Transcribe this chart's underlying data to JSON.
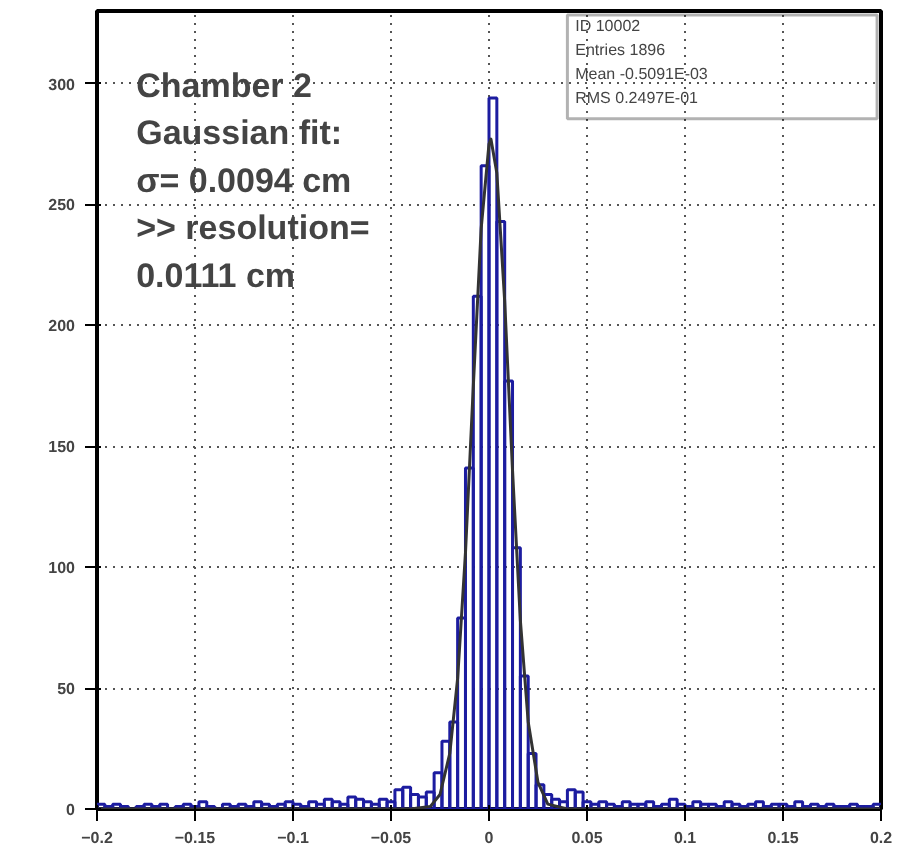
{
  "chart_data": {
    "type": "histogram",
    "bins": [
      -0.2,
      -0.196,
      -0.192,
      -0.188,
      -0.184,
      -0.18,
      -0.176,
      -0.172,
      -0.168,
      -0.164,
      -0.16,
      -0.156,
      -0.152,
      -0.148,
      -0.144,
      -0.14,
      -0.136,
      -0.132,
      -0.128,
      -0.124,
      -0.12,
      -0.116,
      -0.112,
      -0.108,
      -0.104,
      -0.1,
      -0.096,
      -0.092,
      -0.088,
      -0.084,
      -0.08,
      -0.076,
      -0.072,
      -0.068,
      -0.064,
      -0.06,
      -0.056,
      -0.052,
      -0.048,
      -0.044,
      -0.04,
      -0.036,
      -0.032,
      -0.028,
      -0.024,
      -0.02,
      -0.016,
      -0.012,
      -0.008,
      -0.004,
      0,
      0.004,
      0.008,
      0.012,
      0.016,
      0.02,
      0.024,
      0.028,
      0.032,
      0.036,
      0.04,
      0.044,
      0.048,
      0.052,
      0.056,
      0.06,
      0.064,
      0.068,
      0.072,
      0.076,
      0.08,
      0.084,
      0.088,
      0.092,
      0.096,
      0.1,
      0.104,
      0.108,
      0.112,
      0.116,
      0.12,
      0.124,
      0.128,
      0.132,
      0.136,
      0.14,
      0.144,
      0.148,
      0.152,
      0.156,
      0.16,
      0.164,
      0.168,
      0.172,
      0.176,
      0.18,
      0.184,
      0.188,
      0.192,
      0.196,
      0.2
    ],
    "series": [
      {
        "color": "#1c1ca0",
        "values": [
          2,
          1,
          2,
          1,
          0,
          1,
          2,
          1,
          2,
          0,
          1,
          2,
          1,
          3,
          1,
          0,
          2,
          1,
          2,
          1,
          3,
          2,
          1,
          2,
          3,
          2,
          1,
          3,
          2,
          4,
          3,
          2,
          5,
          4,
          3,
          2,
          4,
          3,
          8,
          9,
          6,
          5,
          7,
          15,
          28,
          36,
          79,
          141,
          212,
          266,
          294,
          243,
          177,
          108,
          55,
          23,
          10,
          6,
          4,
          3,
          8,
          7,
          3,
          2,
          3,
          2,
          1,
          3,
          2,
          2,
          3,
          1,
          2,
          4,
          2,
          1,
          3,
          2,
          2,
          1,
          3,
          2,
          1,
          2,
          3,
          1,
          2,
          2,
          1,
          3,
          1,
          2,
          1,
          2,
          1,
          1,
          2,
          1,
          1,
          2
        ]
      },
      {
        "type": "line",
        "color": "#333333",
        "x": [
          -0.2,
          -0.04,
          -0.03,
          -0.025,
          -0.02,
          -0.016,
          -0.012,
          -0.008,
          -0.004,
          0,
          0.001,
          0.004,
          0.008,
          0.012,
          0.016,
          0.02,
          0.025,
          0.03,
          0.04,
          0.2
        ],
        "values": [
          0,
          0,
          1,
          6,
          23,
          54,
          106,
          175,
          240,
          275,
          277,
          263,
          210,
          140,
          78,
          36,
          11,
          2,
          0,
          0
        ]
      }
    ],
    "xlim": [
      -0.2,
      0.2
    ],
    "xticks": [
      -0.2,
      -0.15,
      -0.1,
      -0.05,
      0,
      0.05,
      0.1,
      0.15,
      0.2
    ],
    "ylim": [
      0,
      330
    ],
    "yticks": [
      0,
      50,
      100,
      150,
      200,
      250,
      300
    ],
    "grid": true,
    "annotations": [
      "Chamber 2\nGaussian fit:\nσ= 0.0094 cm\n>> resolution=\n0.0111 cm",
      "ID 10002",
      "Entries 1896",
      "Mean -0.5091E-03",
      "RMS 0.2497E-01"
    ]
  }
}
